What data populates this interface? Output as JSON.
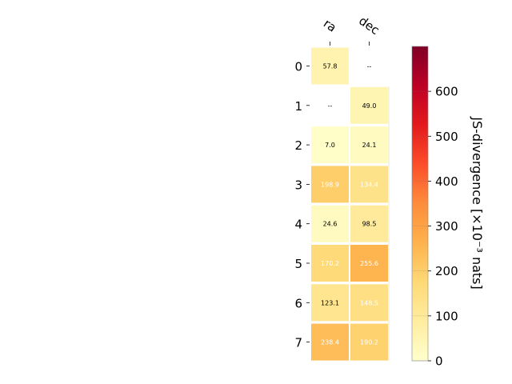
{
  "chart_data": {
    "type": "heatmap",
    "columns": [
      "ra",
      "dec"
    ],
    "rows": [
      "0",
      "1",
      "2",
      "3",
      "4",
      "5",
      "6",
      "7"
    ],
    "values": [
      [
        57.8,
        null
      ],
      [
        null,
        49.0
      ],
      [
        7.0,
        24.1
      ],
      [
        198.9,
        134.4
      ],
      [
        24.6,
        98.5
      ],
      [
        170.2,
        255.6
      ],
      [
        123.1,
        148.5
      ],
      [
        238.4,
        190.2
      ]
    ],
    "cell_labels": [
      [
        "57.8",
        "--"
      ],
      [
        "--",
        "49.0"
      ],
      [
        "7.0",
        "24.1"
      ],
      [
        "198.9",
        "134.4"
      ],
      [
        "24.6",
        "98.5"
      ],
      [
        "170.2",
        "255.6"
      ],
      [
        "123.1",
        "148.5"
      ],
      [
        "238.4",
        "190.2"
      ]
    ],
    "colorbar": {
      "label": "JS-divergence [×10⁻³ nats]",
      "range": [
        0,
        700
      ],
      "ticks": [
        "0",
        "100",
        "200",
        "300",
        "400",
        "500",
        "600"
      ],
      "colormap": "YlOrRd"
    }
  }
}
